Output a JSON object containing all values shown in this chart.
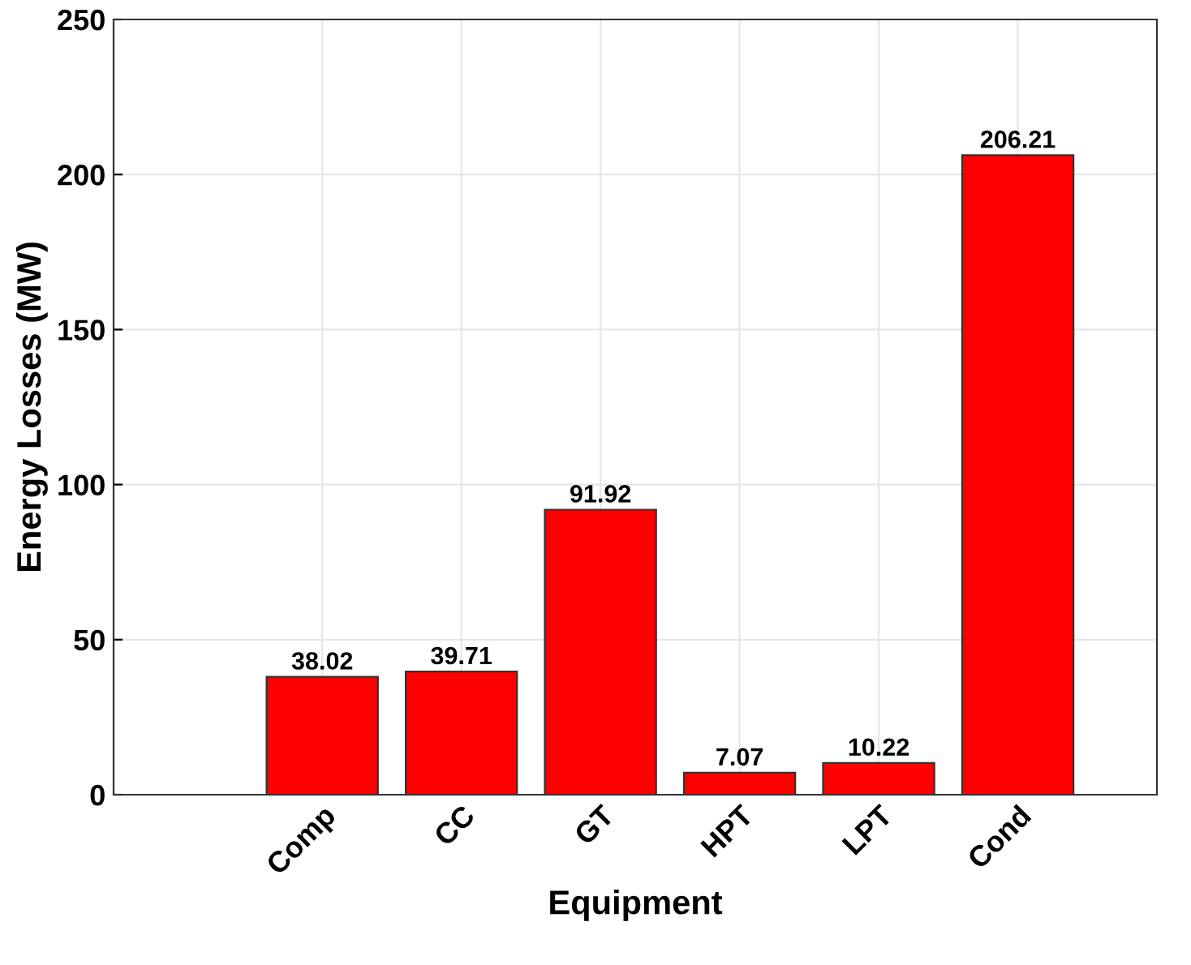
{
  "chart_data": {
    "type": "bar",
    "xlabel": "Equipment",
    "ylabel": "Energy Losses (MW)",
    "categories": [
      "Comp",
      "CC",
      "GT",
      "HPT",
      "LPT",
      "Cond"
    ],
    "values": [
      38.02,
      39.71,
      91.92,
      7.07,
      10.22,
      206.21
    ],
    "color": "#ff0000",
    "ylim": [
      0,
      250
    ],
    "yticks": [
      0,
      50,
      100,
      150,
      200,
      250
    ],
    "grid": true,
    "data_labels": true
  }
}
